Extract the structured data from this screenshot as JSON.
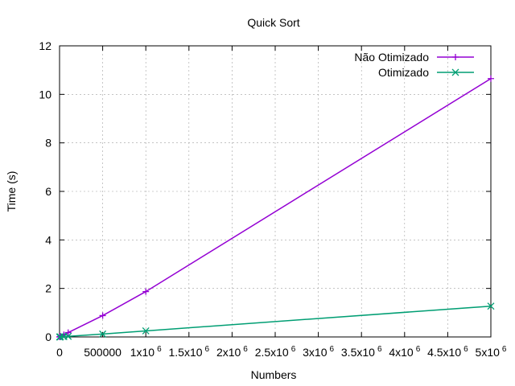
{
  "chart_data": {
    "type": "line",
    "title": "Quick Sort",
    "xlabel": "Numbers",
    "ylabel": "Time (s)",
    "xlim": [
      0,
      5000000
    ],
    "ylim": [
      0,
      12
    ],
    "grid": true,
    "legend_position": "top-right",
    "x_ticks": [
      {
        "value": 0,
        "base": "0",
        "exp": ""
      },
      {
        "value": 500000,
        "base": "500000",
        "exp": ""
      },
      {
        "value": 1000000,
        "base": "1x10",
        "exp": "6"
      },
      {
        "value": 1500000,
        "base": "1.5x10",
        "exp": "6"
      },
      {
        "value": 2000000,
        "base": "2x10",
        "exp": "6"
      },
      {
        "value": 2500000,
        "base": "2.5x10",
        "exp": "6"
      },
      {
        "value": 3000000,
        "base": "3x10",
        "exp": "6"
      },
      {
        "value": 3500000,
        "base": "3.5x10",
        "exp": "6"
      },
      {
        "value": 4000000,
        "base": "4x10",
        "exp": "6"
      },
      {
        "value": 4500000,
        "base": "4.5x10",
        "exp": "6"
      },
      {
        "value": 5000000,
        "base": "5x10",
        "exp": "6"
      }
    ],
    "y_ticks": [
      {
        "value": 0,
        "label": "0"
      },
      {
        "value": 2,
        "label": "2"
      },
      {
        "value": 4,
        "label": "4"
      },
      {
        "value": 6,
        "label": "6"
      },
      {
        "value": 8,
        "label": "8"
      },
      {
        "value": 10,
        "label": "10"
      },
      {
        "value": 12,
        "label": "12"
      }
    ],
    "series": [
      {
        "name": "Não Otimizado",
        "color": "#9400d3",
        "marker": "plus",
        "x": [
          1000,
          5000,
          10000,
          50000,
          100000,
          500000,
          1000000,
          5000000
        ],
        "y": [
          0.002,
          0.01,
          0.02,
          0.09,
          0.18,
          0.88,
          1.87,
          10.65
        ]
      },
      {
        "name": "Otimizado",
        "color": "#009e73",
        "marker": "x",
        "x": [
          1000,
          5000,
          10000,
          50000,
          100000,
          500000,
          1000000,
          5000000
        ],
        "y": [
          0.0003,
          0.0012,
          0.0025,
          0.012,
          0.025,
          0.12,
          0.25,
          1.27
        ]
      }
    ]
  }
}
